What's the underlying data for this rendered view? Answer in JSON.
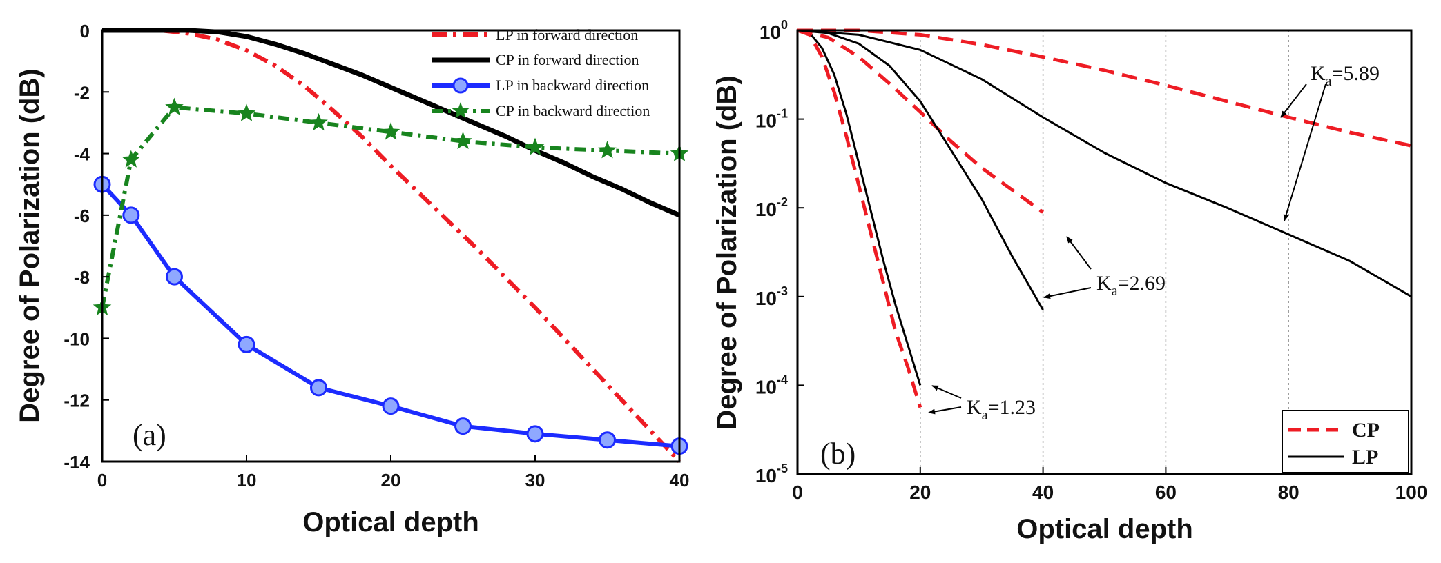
{
  "chart_data": [
    {
      "type": "line",
      "panel_label": "(a)",
      "xlabel": "Optical depth",
      "ylabel": "Degree of Polarization (dB)",
      "xlim": [
        0,
        40
      ],
      "ylim": [
        -14,
        0
      ],
      "xticks": [
        0,
        10,
        20,
        30,
        40
      ],
      "yticks": [
        0,
        -2,
        -4,
        -6,
        -8,
        -10,
        -12,
        -14
      ],
      "legend_position": "top-right",
      "series": [
        {
          "name": "LP in forward direction",
          "color": "#ee1c24",
          "style": "dashdot",
          "x": [
            0,
            4,
            6,
            8,
            10,
            12,
            14,
            16,
            18,
            20,
            22,
            24,
            26,
            28,
            30,
            32,
            34,
            36,
            38,
            40
          ],
          "y": [
            0,
            0,
            -0.1,
            -0.3,
            -0.65,
            -1.15,
            -1.8,
            -2.6,
            -3.45,
            -4.4,
            -5.3,
            -6.2,
            -7.1,
            -8.05,
            -9.0,
            -10.0,
            -11.0,
            -12.0,
            -13.0,
            -14.0
          ]
        },
        {
          "name": "CP in forward direction",
          "color": "#000000",
          "style": "solid",
          "x": [
            0,
            4,
            6,
            8,
            10,
            12,
            14,
            16,
            18,
            20,
            22,
            24,
            26,
            28,
            30,
            32,
            34,
            36,
            38,
            40
          ],
          "y": [
            0,
            0,
            0,
            -0.05,
            -0.2,
            -0.45,
            -0.75,
            -1.1,
            -1.45,
            -1.85,
            -2.25,
            -2.65,
            -3.05,
            -3.45,
            -3.9,
            -4.3,
            -4.75,
            -5.15,
            -5.6,
            -6.0
          ]
        },
        {
          "name": "LP in backward direction",
          "color": "#1c2bff",
          "style": "solid-circle",
          "x": [
            0,
            2,
            5,
            10,
            15,
            20,
            25,
            30,
            35,
            40
          ],
          "y": [
            -5.0,
            -6.0,
            -8.0,
            -10.2,
            -11.6,
            -12.2,
            -12.85,
            -13.1,
            -13.3,
            -13.5
          ]
        },
        {
          "name": "CP in backward direction",
          "color": "#18841e",
          "style": "dashdot-star",
          "x": [
            0,
            2,
            5,
            10,
            15,
            20,
            25,
            30,
            35,
            40
          ],
          "y": [
            -9.0,
            -4.2,
            -2.5,
            -2.7,
            -3.0,
            -3.3,
            -3.6,
            -3.8,
            -3.9,
            -4.0
          ]
        }
      ]
    },
    {
      "type": "line",
      "panel_label": "(b)",
      "xlabel": "Optical depth",
      "ylabel": "Degree of Polarization (dB)",
      "xlim": [
        0,
        100
      ],
      "yscale": "log",
      "ylim_exp": [
        -5,
        0
      ],
      "xticks": [
        0,
        20,
        40,
        60,
        80,
        100
      ],
      "yticks": [
        {
          "base": "10",
          "exp": "0"
        },
        {
          "base": "10",
          "exp": "-1"
        },
        {
          "base": "10",
          "exp": "-2"
        },
        {
          "base": "10",
          "exp": "-3"
        },
        {
          "base": "10",
          "exp": "-4"
        },
        {
          "base": "10",
          "exp": "-5"
        }
      ],
      "vgrid": [
        20,
        40,
        60,
        80
      ],
      "legend_position": "bottom-right",
      "legend": [
        {
          "name": "CP",
          "color": "#ee1c24",
          "style": "dashed"
        },
        {
          "name": "LP",
          "color": "#000000",
          "style": "solid"
        }
      ],
      "series": [
        {
          "name": "CP",
          "group": "Ka=1.23",
          "color": "#ee1c24",
          "style": "dashed",
          "x": [
            0,
            2,
            4,
            6,
            8,
            10,
            12,
            14,
            16,
            18,
            20
          ],
          "logy": [
            0,
            -0.05,
            -0.3,
            -0.7,
            -1.2,
            -1.75,
            -2.3,
            -2.85,
            -3.4,
            -3.8,
            -4.25
          ]
        },
        {
          "name": "LP",
          "group": "Ka=1.23",
          "color": "#000000",
          "style": "solid",
          "x": [
            0,
            2,
            4,
            6,
            8,
            10,
            12,
            14,
            16,
            18,
            20
          ],
          "logy": [
            0,
            -0.03,
            -0.2,
            -0.5,
            -0.95,
            -1.5,
            -2.05,
            -2.6,
            -3.1,
            -3.55,
            -4.0
          ]
        },
        {
          "name": "CP",
          "group": "Ka=2.69",
          "color": "#ee1c24",
          "style": "dashed",
          "x": [
            0,
            5,
            10,
            15,
            20,
            25,
            30,
            35,
            40
          ],
          "logy": [
            0,
            -0.08,
            -0.3,
            -0.6,
            -0.92,
            -1.25,
            -1.55,
            -1.8,
            -2.05
          ]
        },
        {
          "name": "LP",
          "group": "Ka=2.69",
          "color": "#000000",
          "style": "solid",
          "x": [
            0,
            5,
            10,
            15,
            20,
            25,
            30,
            35,
            40
          ],
          "logy": [
            0,
            -0.03,
            -0.15,
            -0.4,
            -0.8,
            -1.35,
            -1.9,
            -2.55,
            -3.15
          ]
        },
        {
          "name": "CP",
          "group": "Ka=5.89",
          "color": "#ee1c24",
          "style": "dashed",
          "x": [
            0,
            10,
            20,
            30,
            40,
            50,
            60,
            70,
            80,
            90,
            100
          ],
          "logy": [
            0,
            0,
            -0.05,
            -0.16,
            -0.3,
            -0.45,
            -0.62,
            -0.8,
            -0.98,
            -1.15,
            -1.3
          ]
        },
        {
          "name": "LP",
          "group": "Ka=5.89",
          "color": "#000000",
          "style": "solid",
          "x": [
            0,
            10,
            20,
            30,
            40,
            50,
            60,
            70,
            80,
            90,
            100
          ],
          "logy": [
            0,
            -0.05,
            -0.22,
            -0.55,
            -0.98,
            -1.38,
            -1.72,
            -2.0,
            -2.3,
            -2.6,
            -3.0
          ]
        }
      ],
      "annotations": [
        {
          "label": "K",
          "sub": "a",
          "value": "=1.23"
        },
        {
          "label": "K",
          "sub": "a",
          "value": "=2.69"
        },
        {
          "label": "K",
          "sub": "a",
          "value": "=5.89"
        }
      ]
    }
  ]
}
